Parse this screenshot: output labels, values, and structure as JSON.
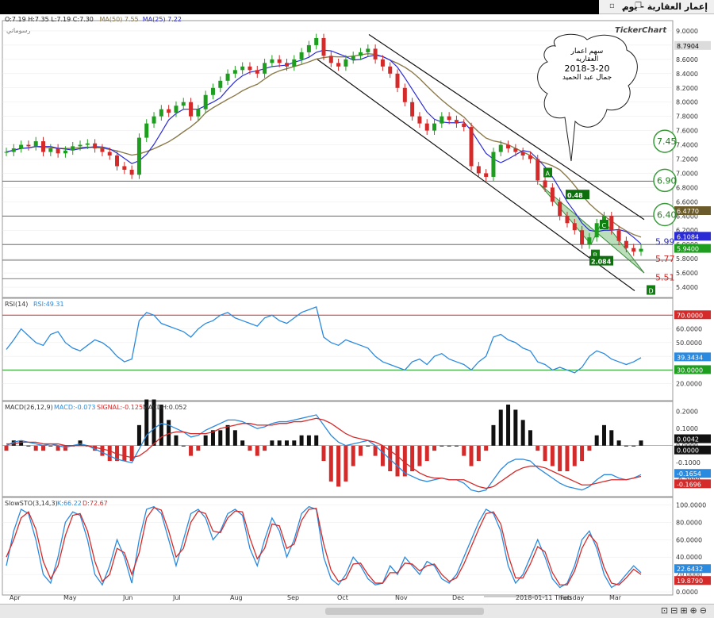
{
  "window": {
    "title": "إعمار العقارية - يوم",
    "minimize": "▁",
    "restore": "❐",
    "close": "✕",
    "left_icon": "▫"
  },
  "header": {
    "ohlc": "O:7.19  H:7.35  L:7.19  C:7.30",
    "ma50_label": "MA(50)  7.55",
    "ma25_label": "MA(25)  7.22",
    "drawings_label": "رسوماتي",
    "brand": "TickerChart"
  },
  "annotation": {
    "line1": "سهم اعمار",
    "line2": "العقاريه",
    "line3": "2018-3-20",
    "line4": "جمال عبد الحميد"
  },
  "colors": {
    "up": "#1e9e1e",
    "down": "#d42a2a",
    "ma25": "#2b2bd6",
    "ma50": "#8b7a4a",
    "grid": "#e8e8e8"
  },
  "chart_data": [
    {
      "type": "candlestick",
      "title": "إعمار العقارية - يوم",
      "ylim": [
        5.3,
        9.1
      ],
      "y_ticks": [
        "9.0000",
        "8.8000",
        "8.6000",
        "8.4000",
        "8.2000",
        "8.0000",
        "7.8000",
        "7.6000",
        "7.4000",
        "7.2000",
        "7.0000",
        "6.8000",
        "6.6000",
        "6.4000",
        "6.2000",
        "6.0000",
        "5.8000",
        "5.6000",
        "5.4000"
      ],
      "x_labels": [
        "Apr",
        "May",
        "Jun",
        "Jul",
        "Aug",
        "Sep",
        "Oct",
        "Nov",
        "Dec",
        "2018-01-11 Thursday",
        "Feb",
        "Mar"
      ],
      "close": [
        7.3,
        7.35,
        7.4,
        7.38,
        7.45,
        7.3,
        7.35,
        7.28,
        7.32,
        7.38,
        7.4,
        7.42,
        7.35,
        7.3,
        7.25,
        7.1,
        7.05,
        6.98,
        7.5,
        7.7,
        7.8,
        7.9,
        7.85,
        7.95,
        8.0,
        7.8,
        7.9,
        8.1,
        8.2,
        8.3,
        8.4,
        8.45,
        8.5,
        8.45,
        8.4,
        8.55,
        8.6,
        8.55,
        8.5,
        8.6,
        8.7,
        8.8,
        8.9,
        8.65,
        8.55,
        8.5,
        8.6,
        8.65,
        8.7,
        8.75,
        8.6,
        8.5,
        8.4,
        8.2,
        8.0,
        7.8,
        7.7,
        7.6,
        7.7,
        7.8,
        7.75,
        7.7,
        7.65,
        7.1,
        7.0,
        6.95,
        7.3,
        7.4,
        7.35,
        7.3,
        7.25,
        7.2,
        6.9,
        6.8,
        6.6,
        6.4,
        6.3,
        6.2,
        6.0,
        6.1,
        6.3,
        6.4,
        6.2,
        6.05,
        5.95,
        5.9,
        5.94
      ],
      "ma25_label": "6.1084",
      "ma50_label": "6.4770",
      "last_label": "5.9400",
      "high_label": "8.7904",
      "hlines": [
        6.89,
        6.4,
        6.0,
        5.78,
        5.52
      ],
      "level_labels": [
        "7.45",
        "6.90",
        "6.40",
        "5.99",
        "5.77",
        "5.51"
      ],
      "pattern_points": [
        "A",
        "B",
        "C",
        "D"
      ],
      "pattern_values": [
        "0.48",
        "2.084"
      ]
    },
    {
      "type": "line",
      "title": "RSI(14)",
      "value_label": "RSI:49.31",
      "ylim": [
        10,
        80
      ],
      "y_ticks": [
        "70.0000",
        "60.0000",
        "50.0000",
        "40.0000",
        "30.0000",
        "20.0000"
      ],
      "overbought": 70,
      "oversold": 30,
      "ob_label": "70.0000",
      "os_label": "30.0000",
      "last_label": "39.3434",
      "values": [
        45,
        52,
        60,
        55,
        50,
        48,
        56,
        58,
        50,
        46,
        44,
        48,
        52,
        50,
        46,
        40,
        36,
        38,
        66,
        72,
        70,
        64,
        62,
        60,
        58,
        54,
        60,
        64,
        66,
        70,
        72,
        68,
        66,
        64,
        62,
        68,
        70,
        66,
        64,
        68,
        72,
        74,
        76,
        54,
        50,
        48,
        52,
        50,
        48,
        46,
        40,
        36,
        34,
        32,
        30,
        36,
        38,
        34,
        40,
        42,
        38,
        36,
        34,
        30,
        36,
        40,
        54,
        56,
        52,
        50,
        46,
        44,
        36,
        34,
        30,
        32,
        30,
        28,
        32,
        40,
        44,
        42,
        38,
        36,
        34,
        36,
        39
      ]
    },
    {
      "type": "line",
      "title": "MACD(26,12,9)",
      "macd_label": "MACD:-0.073",
      "signal_label": "SIGNAL:-0.125",
      "macdh_label": "MACDH:0.052",
      "ylim": [
        -0.28,
        0.24
      ],
      "y_ticks": [
        "0.2000",
        "0.1000",
        "0.0000",
        "-0.1000",
        "-0.2000"
      ],
      "labels": [
        "0.0042",
        "0.0000",
        "-0.1654",
        "-0.1696"
      ],
      "macd": [
        0.0,
        0.02,
        0.03,
        0.02,
        0.01,
        0.0,
        0.01,
        0.0,
        -0.01,
        0.0,
        0.01,
        0.0,
        -0.02,
        -0.04,
        -0.06,
        -0.08,
        -0.09,
        -0.1,
        -0.02,
        0.06,
        0.1,
        0.13,
        0.12,
        0.1,
        0.08,
        0.05,
        0.06,
        0.09,
        0.11,
        0.13,
        0.15,
        0.15,
        0.14,
        0.12,
        0.1,
        0.11,
        0.13,
        0.14,
        0.14,
        0.15,
        0.16,
        0.17,
        0.18,
        0.12,
        0.06,
        0.02,
        0.0,
        0.01,
        0.02,
        0.03,
        0.0,
        -0.04,
        -0.08,
        -0.12,
        -0.16,
        -0.18,
        -0.2,
        -0.21,
        -0.2,
        -0.19,
        -0.2,
        -0.2,
        -0.22,
        -0.26,
        -0.27,
        -0.26,
        -0.2,
        -0.14,
        -0.1,
        -0.08,
        -0.08,
        -0.09,
        -0.13,
        -0.16,
        -0.19,
        -0.22,
        -0.24,
        -0.25,
        -0.26,
        -0.24,
        -0.2,
        -0.17,
        -0.17,
        -0.19,
        -0.2,
        -0.19,
        -0.17
      ],
      "signal": [
        0.01,
        0.01,
        0.02,
        0.02,
        0.02,
        0.01,
        0.01,
        0.01,
        0.0,
        0.0,
        0.0,
        0.0,
        -0.01,
        -0.02,
        -0.03,
        -0.05,
        -0.06,
        -0.07,
        -0.06,
        -0.03,
        0.01,
        0.05,
        0.07,
        0.08,
        0.08,
        0.07,
        0.07,
        0.07,
        0.08,
        0.1,
        0.11,
        0.12,
        0.13,
        0.13,
        0.12,
        0.12,
        0.12,
        0.13,
        0.13,
        0.14,
        0.14,
        0.15,
        0.16,
        0.15,
        0.13,
        0.1,
        0.07,
        0.05,
        0.04,
        0.03,
        0.02,
        0.0,
        -0.03,
        -0.06,
        -0.1,
        -0.13,
        -0.16,
        -0.18,
        -0.19,
        -0.19,
        -0.2,
        -0.2,
        -0.2,
        -0.22,
        -0.24,
        -0.25,
        -0.24,
        -0.21,
        -0.18,
        -0.15,
        -0.13,
        -0.12,
        -0.12,
        -0.13,
        -0.15,
        -0.17,
        -0.19,
        -0.21,
        -0.23,
        -0.23,
        -0.22,
        -0.21,
        -0.2,
        -0.2,
        -0.2,
        -0.19,
        -0.18
      ]
    },
    {
      "type": "line",
      "title": "SlowSTO(3,14,3)",
      "k_label": "K:66.22",
      "d_label": "D:72.67",
      "ylim": [
        0,
        105
      ],
      "y_ticks": [
        "100.0000",
        "80.0000",
        "60.0000",
        "40.0000",
        "20.0000",
        "0.0000"
      ],
      "labels": [
        "22.6432",
        "19.8790"
      ],
      "k": [
        30,
        70,
        95,
        90,
        60,
        20,
        10,
        40,
        80,
        92,
        88,
        60,
        20,
        8,
        30,
        60,
        40,
        10,
        60,
        95,
        98,
        90,
        60,
        30,
        60,
        90,
        95,
        85,
        60,
        70,
        90,
        95,
        88,
        50,
        30,
        60,
        85,
        70,
        40,
        60,
        90,
        98,
        95,
        40,
        15,
        8,
        20,
        40,
        30,
        15,
        8,
        10,
        30,
        20,
        40,
        30,
        20,
        35,
        30,
        15,
        10,
        20,
        40,
        60,
        80,
        95,
        90,
        70,
        30,
        10,
        20,
        40,
        60,
        40,
        15,
        5,
        10,
        30,
        60,
        70,
        50,
        20,
        5,
        10,
        20,
        30,
        22
      ],
      "d": [
        40,
        60,
        85,
        92,
        72,
        35,
        15,
        30,
        65,
        88,
        90,
        70,
        35,
        12,
        20,
        50,
        45,
        20,
        45,
        85,
        97,
        94,
        70,
        40,
        50,
        80,
        93,
        90,
        70,
        68,
        85,
        93,
        92,
        62,
        38,
        50,
        78,
        76,
        50,
        55,
        82,
        95,
        96,
        55,
        25,
        12,
        15,
        32,
        33,
        20,
        10,
        10,
        22,
        22,
        33,
        32,
        24,
        30,
        32,
        20,
        12,
        16,
        32,
        52,
        72,
        90,
        92,
        78,
        42,
        16,
        16,
        32,
        52,
        46,
        22,
        8,
        8,
        24,
        50,
        66,
        56,
        28,
        10,
        8,
        16,
        26,
        20
      ]
    }
  ]
}
